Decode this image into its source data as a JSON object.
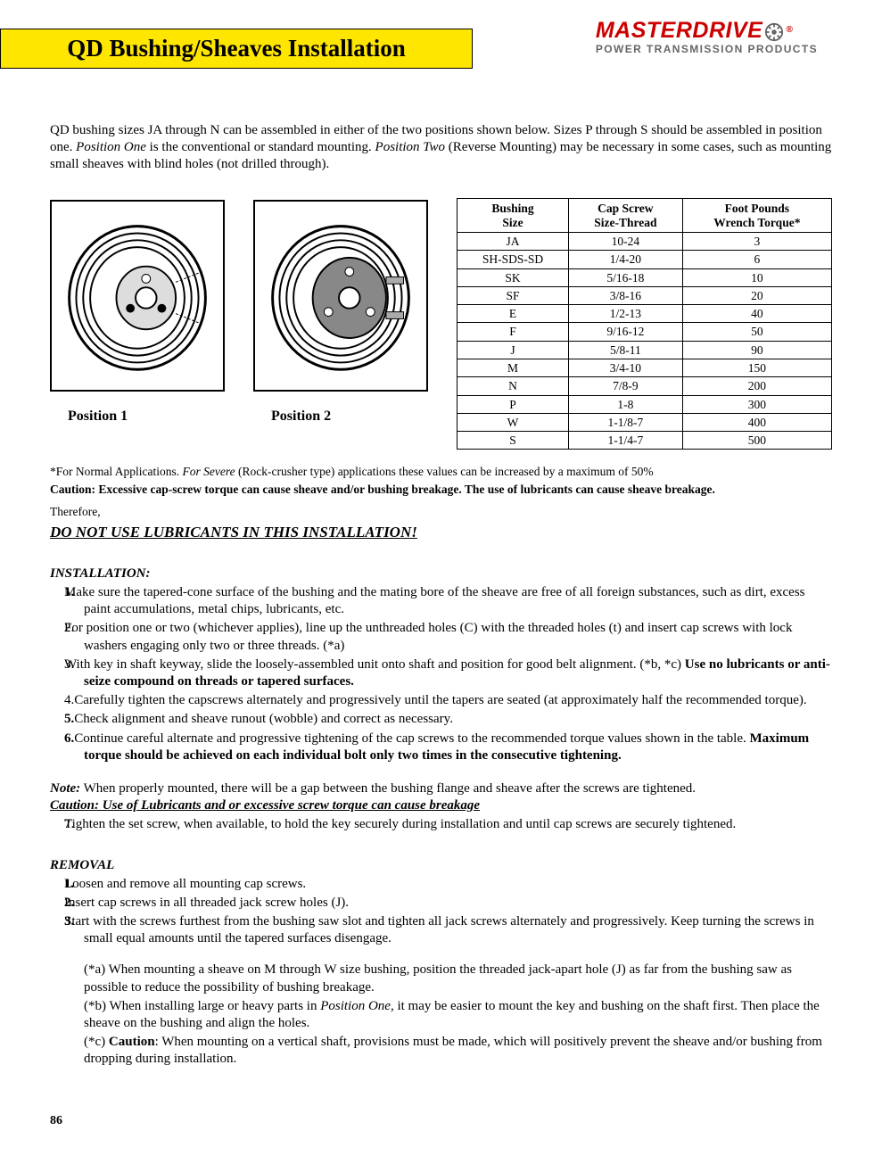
{
  "brand": {
    "name": "MASTERDRIVE",
    "sub": "POWER TRANSMISSION PRODUCTS"
  },
  "title": "QD Bushing/Sheaves Installation",
  "intro": {
    "p1a": "QD bushing sizes JA through N can be assembled in either of the two positions shown below.  Sizes P through  S should be assembled in position one.  ",
    "pos1lbl": "Position One",
    "p1b": " is the conventional or standard mounting.  ",
    "pos2lbl": "Position Two",
    "p1c": " (Reverse Mounting)  may be necessary in some cases, such as mounting small sheaves with blind holes (not drilled through)."
  },
  "fig": {
    "cap1": "Position 1",
    "cap2": "Position 2"
  },
  "table": {
    "h1": "Bushing Size",
    "h2": "Cap Screw Size-Thread",
    "h3": "Foot Pounds Wrench Torque*",
    "rows": [
      {
        "a": "JA",
        "b": "10-24",
        "c": "3"
      },
      {
        "a": "SH-SDS-SD",
        "b": "1/4-20",
        "c": "6"
      },
      {
        "a": "SK",
        "b": "5/16-18",
        "c": "10"
      },
      {
        "a": "SF",
        "b": "3/8-16",
        "c": "20"
      },
      {
        "a": "E",
        "b": "1/2-13",
        "c": "40"
      },
      {
        "a": "F",
        "b": "9/16-12",
        "c": "50"
      },
      {
        "a": "J",
        "b": "5/8-11",
        "c": "90"
      },
      {
        "a": "M",
        "b": "3/4-10",
        "c": "150"
      },
      {
        "a": "N",
        "b": "7/8-9",
        "c": "200"
      },
      {
        "a": "P",
        "b": "1-8",
        "c": "300"
      },
      {
        "a": "W",
        "b": "1-1/8-7",
        "c": "400"
      },
      {
        "a": "S",
        "b": "1-1/4-7",
        "c": "500"
      }
    ]
  },
  "footnote": {
    "a": "*For Normal Applications. ",
    "b": "For Severe",
    "c": " (Rock-crusher type) applications these values can be increased by a maximum of 50%"
  },
  "caution1": "Caution: Excessive cap-screw torque can cause sheave and/or bushing breakage. The use of lubricants can cause sheave breakage.",
  "therefore": "Therefore,",
  "nolub": "DO NOT USE LUBRICANTS IN THIS INSTALLATION!",
  "install_head": "INSTALLATION:",
  "install": {
    "s1": "Make sure the tapered-cone surface of the bushing and the mating bore of the sheave are free of all foreign substances, such as dirt, excess paint accumulations, metal chips, lubricants, etc.",
    "s2": "For position one or two (whichever applies), line up the unthreaded holes (C) with the threaded holes (t) and insert cap screws with lock washers engaging only two or three threads.   (*a)",
    "s3a": "With key in shaft keyway, slide the loosely-assembled unit onto shaft and position for good belt alignment. (*b, *c)  ",
    "s3b": "Use no lubricants or anti-seize compound on threads or tapered surfaces.",
    "s4": "Carefully tighten the capscrews alternately and progressively until the tapers are seated (at approximately half the recommended torque).",
    "s5": "Check alignment and sheave runout (wobble) and correct as necessary.",
    "s6a": "Continue careful alternate and progressive tightening of the cap screws to the recommended torque values shown in the table.  ",
    "s6b": "Maximum torque should be achieved on each individual bolt only two times in the consecutive tightening."
  },
  "note": {
    "lbl": "Note:",
    "txt": "  When properly mounted, there will be a gap between the bushing flange and sheave after the screws are tightened."
  },
  "caution2": "Caution:  Use of Lubricants and or excessive screw torque can cause breakage",
  "step7": "Tighten the set screw, when available, to hold the key securely during installation and until cap screws are securely tightened.",
  "removal_head": "REMOVAL",
  "removal": {
    "s1": "Loosen and remove all mounting cap screws.",
    "s2": "Insert cap screws in all threaded jack screw holes (J).",
    "s3": "Start with the screws furthest from the bushing saw slot and tighten all jack screws alternately and progressively.  Keep turning the screws in small equal amounts until the tapered surfaces disengage."
  },
  "notes": {
    "a": "(*a)  When mounting a sheave on M through W size bushing, position the threaded jack-apart hole (J) as far from the bushing saw as possible to reduce the possibility of bushing breakage.",
    "b_pre": "(*b)  When installing large or heavy parts in ",
    "b_em": "Position One",
    "b_post": ", it may be easier to mount the key and bushing on the shaft first.  Then place the sheave on the bushing and align the holes.",
    "c_pre": "(*c)  ",
    "c_b": "Caution",
    "c_post": ": When mounting on a vertical shaft, provisions must be made, which will positively prevent the sheave and/or bushing from dropping during installation."
  },
  "page": "86"
}
